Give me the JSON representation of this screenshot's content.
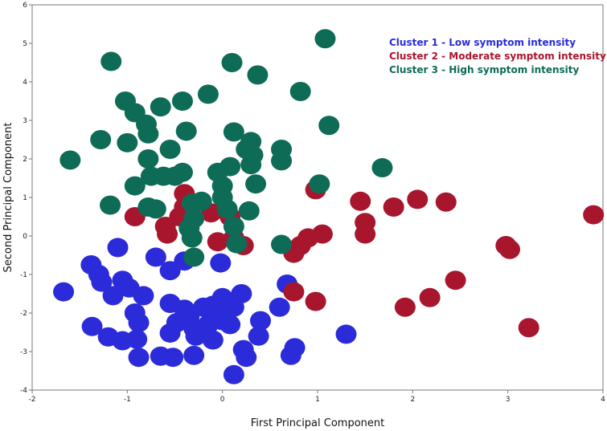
{
  "chart_data": {
    "type": "scatter",
    "title": "",
    "xlabel": "First Principal Component",
    "ylabel": "Second Principal Component",
    "xlim": [
      -2,
      4
    ],
    "ylim": [
      -4,
      6
    ],
    "x_ticks": [
      -2,
      -1,
      0,
      1,
      2,
      3,
      4
    ],
    "y_ticks": [
      -4,
      -3,
      -2,
      -1,
      0,
      1,
      2,
      3,
      4,
      5,
      6
    ],
    "grid": false,
    "legend_position": "top-right",
    "series": [
      {
        "name": "Cluster 1 - Low symptom intensity",
        "color": "#2B2BD9",
        "points": [
          [
            -1.67,
            -1.45
          ],
          [
            -1.38,
            -0.75
          ],
          [
            -1.3,
            -1.0
          ],
          [
            -1.27,
            -1.2
          ],
          [
            -1.15,
            -1.55
          ],
          [
            -1.05,
            -1.15
          ],
          [
            -0.98,
            -1.35
          ],
          [
            -0.83,
            -1.55
          ],
          [
            -1.1,
            -0.3
          ],
          [
            -0.92,
            -2.0
          ],
          [
            -0.88,
            -2.25
          ],
          [
            -1.37,
            -2.35
          ],
          [
            -1.2,
            -2.62
          ],
          [
            -1.05,
            -2.72
          ],
          [
            -0.9,
            -2.68
          ],
          [
            -0.88,
            -3.15
          ],
          [
            -0.65,
            -3.12
          ],
          [
            -0.52,
            -3.15
          ],
          [
            -0.3,
            -3.1
          ],
          [
            -0.55,
            -2.52
          ],
          [
            -0.48,
            -2.25
          ],
          [
            -0.35,
            -2.1
          ],
          [
            -0.3,
            -2.4
          ],
          [
            -0.28,
            -2.6
          ],
          [
            -0.15,
            -2.3
          ],
          [
            -0.05,
            -2.05
          ],
          [
            -0.1,
            -2.7
          ],
          [
            -0.2,
            -1.85
          ],
          [
            -0.55,
            -1.75
          ],
          [
            -0.4,
            -1.9
          ],
          [
            -0.1,
            -1.8
          ],
          [
            0.0,
            -1.6
          ],
          [
            0.05,
            -1.75
          ],
          [
            0.0,
            -2.2
          ],
          [
            0.08,
            -2.3
          ],
          [
            0.2,
            -1.5
          ],
          [
            0.12,
            -1.85
          ],
          [
            -0.55,
            -0.9
          ],
          [
            -0.7,
            -0.55
          ],
          [
            -0.4,
            -0.65
          ],
          [
            -0.02,
            -0.7
          ],
          [
            0.22,
            -2.95
          ],
          [
            0.25,
            -3.15
          ],
          [
            0.38,
            -2.6
          ],
          [
            0.4,
            -2.2
          ],
          [
            0.12,
            -3.6
          ],
          [
            0.6,
            -1.85
          ],
          [
            0.68,
            -1.25
          ],
          [
            0.72,
            -3.1
          ],
          [
            0.76,
            -2.9
          ],
          [
            1.3,
            -2.55
          ]
        ]
      },
      {
        "name": "Cluster 2 - Moderate symptom intensity",
        "color": "#A8162E",
        "points": [
          [
            -0.92,
            0.5
          ],
          [
            -0.6,
            0.25
          ],
          [
            -0.58,
            0.05
          ],
          [
            -0.45,
            0.5
          ],
          [
            -0.4,
            0.75
          ],
          [
            -0.4,
            1.1
          ],
          [
            -0.35,
            0.4
          ],
          [
            -0.12,
            0.6
          ],
          [
            -0.05,
            -0.15
          ],
          [
            0.08,
            0.5
          ],
          [
            0.12,
            -0.05
          ],
          [
            0.22,
            -0.25
          ],
          [
            0.75,
            -0.45
          ],
          [
            0.82,
            -0.25
          ],
          [
            0.9,
            -0.05
          ],
          [
            0.98,
            1.2
          ],
          [
            1.05,
            0.05
          ],
          [
            0.75,
            -1.45
          ],
          [
            0.98,
            -1.7
          ],
          [
            1.45,
            0.9
          ],
          [
            1.5,
            0.35
          ],
          [
            1.5,
            0.05
          ],
          [
            1.8,
            0.75
          ],
          [
            2.05,
            0.95
          ],
          [
            2.35,
            0.88
          ],
          [
            1.92,
            -1.85
          ],
          [
            2.18,
            -1.6
          ],
          [
            2.45,
            -1.15
          ],
          [
            2.98,
            -0.25
          ],
          [
            3.02,
            -0.35
          ],
          [
            3.22,
            -2.38
          ],
          [
            3.9,
            0.55
          ]
        ]
      },
      {
        "name": "Cluster 3 - High symptom intensity",
        "color": "#0E6B56",
        "points": [
          [
            -1.6,
            1.97
          ],
          [
            -1.28,
            2.5
          ],
          [
            -1.18,
            0.8
          ],
          [
            -1.17,
            4.53
          ],
          [
            -1.02,
            3.5
          ],
          [
            -1.0,
            2.42
          ],
          [
            -0.92,
            3.2
          ],
          [
            -0.92,
            1.3
          ],
          [
            -0.8,
            2.9
          ],
          [
            -0.78,
            2.65
          ],
          [
            -0.78,
            2.0
          ],
          [
            -0.75,
            1.55
          ],
          [
            -0.78,
            0.75
          ],
          [
            -0.7,
            0.7
          ],
          [
            -0.65,
            3.35
          ],
          [
            -0.62,
            1.55
          ],
          [
            -0.55,
            2.25
          ],
          [
            -0.5,
            1.55
          ],
          [
            -0.42,
            3.5
          ],
          [
            -0.42,
            1.65
          ],
          [
            -0.38,
            2.72
          ],
          [
            -0.32,
            0.85
          ],
          [
            -0.3,
            0.45
          ],
          [
            -0.35,
            0.2
          ],
          [
            -0.32,
            -0.05
          ],
          [
            -0.3,
            -0.55
          ],
          [
            -0.22,
            0.9
          ],
          [
            -0.15,
            3.68
          ],
          [
            -0.05,
            1.65
          ],
          [
            0.0,
            1.3
          ],
          [
            0.0,
            1.0
          ],
          [
            0.05,
            0.7
          ],
          [
            0.08,
            1.8
          ],
          [
            0.12,
            0.25
          ],
          [
            0.15,
            -0.2
          ],
          [
            0.12,
            2.7
          ],
          [
            0.1,
            4.5
          ],
          [
            0.25,
            2.25
          ],
          [
            0.3,
            2.45
          ],
          [
            0.32,
            2.1
          ],
          [
            0.3,
            1.85
          ],
          [
            0.35,
            1.35
          ],
          [
            0.28,
            0.65
          ],
          [
            0.37,
            4.18
          ],
          [
            0.62,
            2.25
          ],
          [
            0.62,
            1.95
          ],
          [
            0.62,
            -0.22
          ],
          [
            0.82,
            3.75
          ],
          [
            1.02,
            1.35
          ],
          [
            1.08,
            5.12
          ],
          [
            1.12,
            2.87
          ],
          [
            1.68,
            1.77
          ]
        ]
      }
    ]
  }
}
